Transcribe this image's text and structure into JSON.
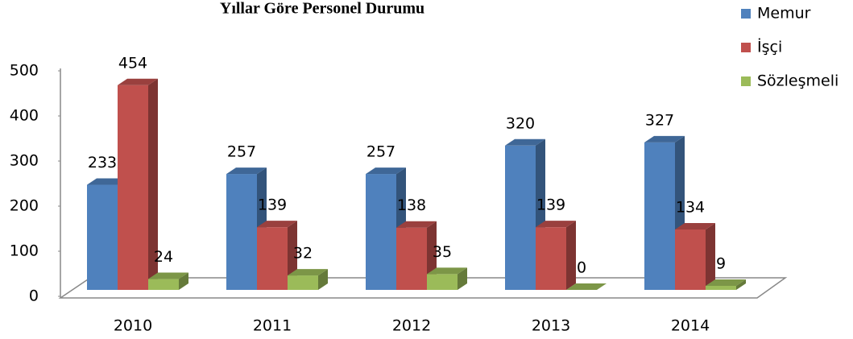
{
  "chart_data": {
    "type": "bar3d",
    "title": "Yıllar Göre Personel Durumu",
    "categories": [
      "2010",
      "2011",
      "2012",
      "2013",
      "2014"
    ],
    "series": [
      {
        "name": "Memur",
        "color": "#4f81bd",
        "values": [
          233,
          257,
          257,
          320,
          327
        ]
      },
      {
        "name": "İşçi",
        "color": "#c0504d",
        "values": [
          454,
          139,
          138,
          139,
          134
        ]
      },
      {
        "name": "Sözleşmeli",
        "color": "#9bbb59",
        "values": [
          24,
          32,
          35,
          0,
          9
        ]
      }
    ],
    "ylim": [
      0,
      500
    ],
    "yticks": [
      0,
      100,
      200,
      300,
      400,
      500
    ],
    "grid": false,
    "legend": "top-right"
  }
}
